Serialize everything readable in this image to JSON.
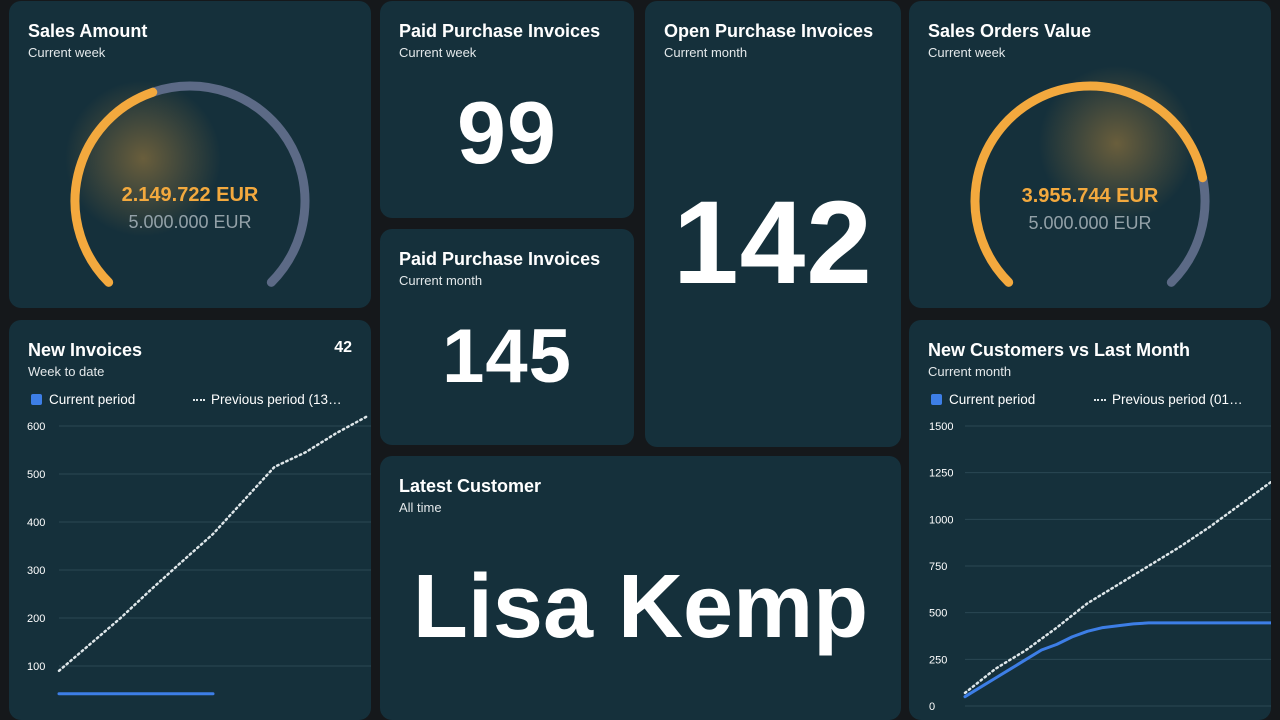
{
  "colors": {
    "page_background": "#15181b",
    "card_background": "#15303b",
    "gauge_fill": "#f3a93e",
    "gauge_track": "#5c6a86",
    "current_series": "#3d7ee6",
    "previous_series": "#dfe7ea"
  },
  "sales_amount": {
    "title": "Sales Amount",
    "subtitle": "Current week",
    "value": "2.149.722 EUR",
    "target": "5.000.000 EUR",
    "progress": 0.43
  },
  "paid_invoices_week": {
    "title": "Paid Purchase Invoices",
    "subtitle": "Current week",
    "value": "99"
  },
  "paid_invoices_month": {
    "title": "Paid Purchase Invoices",
    "subtitle": "Current month",
    "value": "145"
  },
  "open_invoices": {
    "title": "Open Purchase Invoices",
    "subtitle": "Current month",
    "value": "142"
  },
  "sales_orders": {
    "title": "Sales Orders Value",
    "subtitle": "Current week",
    "value": "3.955.744 EUR",
    "target": "5.000.000 EUR",
    "progress": 0.79
  },
  "new_invoices": {
    "title": "New Invoices",
    "subtitle": "Week to date",
    "count": "42",
    "legend_current": "Current period",
    "legend_previous": "Previous period (13…"
  },
  "latest_customer": {
    "title": "Latest Customer",
    "subtitle": "All time",
    "value": "Lisa Kemp"
  },
  "new_customers": {
    "title": "New Customers vs Last Month",
    "subtitle": "Current month",
    "legend_current": "Current period",
    "legend_previous": "Previous period (01…"
  },
  "chart_data": [
    {
      "type": "line",
      "chart": "new_invoices",
      "yticks": [
        "600",
        "500",
        "400",
        "300",
        "200",
        "100"
      ],
      "ylim": [
        0,
        600
      ],
      "xlim": [
        0,
        1
      ],
      "series": [
        {
          "name": "Current period",
          "style": "solid",
          "color": "#3d7ee6",
          "x": [
            0,
            0.5
          ],
          "y": [
            42,
            42
          ]
        },
        {
          "name": "Previous period (13…",
          "style": "dotted",
          "color": "#dfe7ea",
          "x": [
            0,
            0.1,
            0.2,
            0.3,
            0.4,
            0.5,
            0.6,
            0.7,
            0.75,
            0.8,
            0.9,
            1.0
          ],
          "y": [
            90,
            145,
            200,
            260,
            318,
            375,
            445,
            515,
            530,
            545,
            585,
            620
          ]
        }
      ]
    },
    {
      "type": "line",
      "chart": "new_customers",
      "yticks": [
        "1500",
        "1250",
        "1000",
        "750",
        "500",
        "250",
        "0"
      ],
      "ylim": [
        0,
        1500
      ],
      "xlim": [
        0,
        1
      ],
      "series": [
        {
          "name": "Current period",
          "style": "solid",
          "color": "#3d7ee6",
          "x": [
            0,
            0.05,
            0.1,
            0.15,
            0.2,
            0.25,
            0.3,
            0.35,
            0.4,
            0.45,
            0.5,
            0.55,
            0.6,
            0.7,
            0.8,
            0.9,
            1.0
          ],
          "y": [
            50,
            100,
            150,
            200,
            250,
            300,
            330,
            370,
            400,
            420,
            430,
            440,
            445,
            445,
            445,
            445,
            445
          ]
        },
        {
          "name": "Previous period (01…",
          "style": "dotted",
          "color": "#dfe7ea",
          "x": [
            0,
            0.1,
            0.2,
            0.3,
            0.4,
            0.5,
            0.6,
            0.7,
            0.8,
            0.9,
            1.0
          ],
          "y": [
            70,
            200,
            300,
            420,
            550,
            650,
            750,
            850,
            960,
            1080,
            1200
          ]
        }
      ]
    }
  ]
}
